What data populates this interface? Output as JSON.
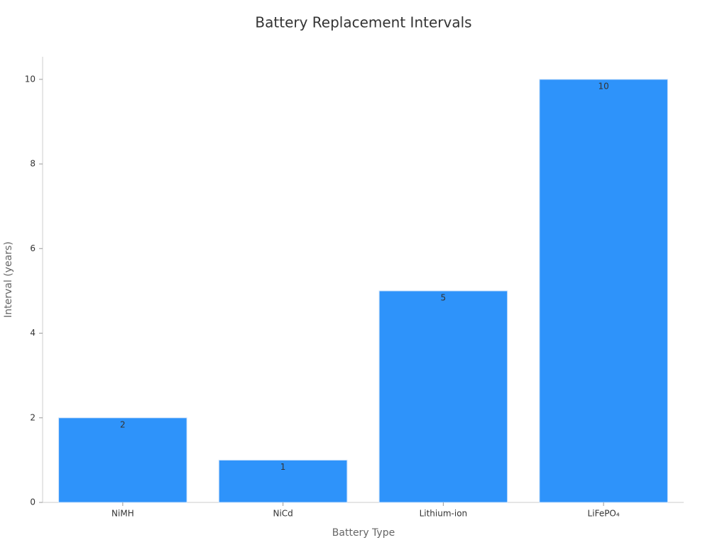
{
  "chart_data": {
    "type": "bar",
    "title": "Battery Replacement Intervals",
    "x_label": "Battery Type",
    "y_label": "Interval (years)",
    "categories": [
      "NiMH",
      "NiCd",
      "Lithium-ion",
      "LiFePO₄"
    ],
    "values": [
      2,
      1,
      5,
      10
    ],
    "color": "#2e93fa",
    "ylim": [
      0,
      10.5
    ],
    "yticks": [
      0,
      2,
      4,
      6,
      8,
      10
    ],
    "grid": false
  }
}
